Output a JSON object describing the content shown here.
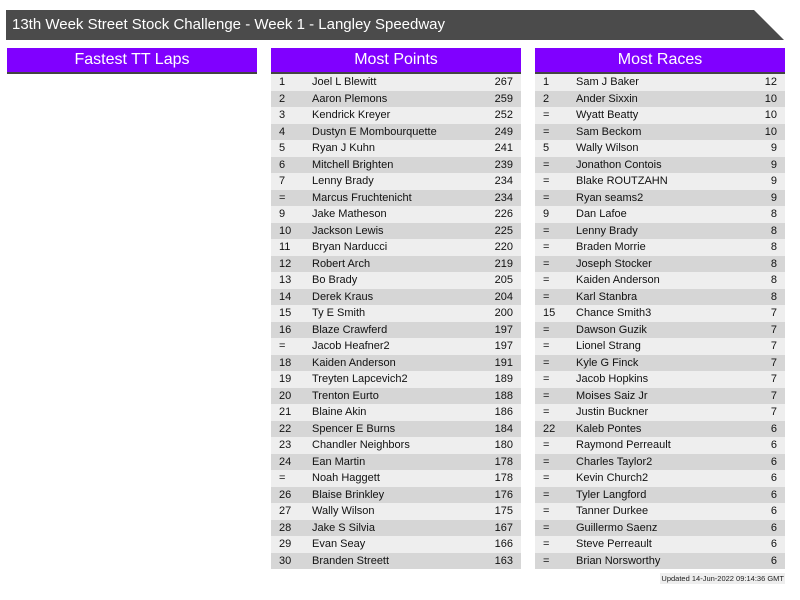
{
  "title": "13th Week Street Stock Challenge - Week 1 - Langley Speedway",
  "colors": {
    "header": "#8000ff",
    "titlebar": "#4b4b4b",
    "row_light": "#eeeeee",
    "row_dark": "#d6d6d6"
  },
  "panels": [
    {
      "title": "Fastest TT Laps",
      "rows": []
    },
    {
      "title": "Most Points",
      "rows": [
        [
          "1",
          "Joel L Blewitt",
          "267"
        ],
        [
          "2",
          "Aaron Plemons",
          "259"
        ],
        [
          "3",
          "Kendrick Kreyer",
          "252"
        ],
        [
          "4",
          "Dustyn E Mombourquette",
          "249"
        ],
        [
          "5",
          "Ryan J Kuhn",
          "241"
        ],
        [
          "6",
          "Mitchell Brighten",
          "239"
        ],
        [
          "7",
          "Lenny Brady",
          "234"
        ],
        [
          "=",
          "Marcus Fruchtenicht",
          "234"
        ],
        [
          "9",
          "Jake Matheson",
          "226"
        ],
        [
          "10",
          "Jackson Lewis",
          "225"
        ],
        [
          "11",
          "Bryan Narducci",
          "220"
        ],
        [
          "12",
          "Robert Arch",
          "219"
        ],
        [
          "13",
          "Bo Brady",
          "205"
        ],
        [
          "14",
          "Derek Kraus",
          "204"
        ],
        [
          "15",
          "Ty E Smith",
          "200"
        ],
        [
          "16",
          "Blaze Crawferd",
          "197"
        ],
        [
          "=",
          "Jacob Heafner2",
          "197"
        ],
        [
          "18",
          "Kaiden Anderson",
          "191"
        ],
        [
          "19",
          "Treyten Lapcevich2",
          "189"
        ],
        [
          "20",
          "Trenton Eurto",
          "188"
        ],
        [
          "21",
          "Blaine Akin",
          "186"
        ],
        [
          "22",
          "Spencer E Burns",
          "184"
        ],
        [
          "23",
          "Chandler Neighbors",
          "180"
        ],
        [
          "24",
          "Ean Martin",
          "178"
        ],
        [
          "=",
          "Noah Haggett",
          "178"
        ],
        [
          "26",
          "Blaise Brinkley",
          "176"
        ],
        [
          "27",
          "Wally Wilson",
          "175"
        ],
        [
          "28",
          "Jake S Silvia",
          "167"
        ],
        [
          "29",
          "Evan Seay",
          "166"
        ],
        [
          "30",
          "Branden Streett",
          "163"
        ]
      ]
    },
    {
      "title": "Most Races",
      "rows": [
        [
          "1",
          "Sam J Baker",
          "12"
        ],
        [
          "2",
          "Ander Sixxin",
          "10"
        ],
        [
          "=",
          "Wyatt Beatty",
          "10"
        ],
        [
          "=",
          "Sam Beckom",
          "10"
        ],
        [
          "5",
          "Wally Wilson",
          "9"
        ],
        [
          "=",
          "Jonathon Contois",
          "9"
        ],
        [
          "=",
          "Blake ROUTZAHN",
          "9"
        ],
        [
          "=",
          "Ryan seams2",
          "9"
        ],
        [
          "9",
          "Dan Lafoe",
          "8"
        ],
        [
          "=",
          "Lenny Brady",
          "8"
        ],
        [
          "=",
          "Braden Morrie",
          "8"
        ],
        [
          "=",
          "Joseph Stocker",
          "8"
        ],
        [
          "=",
          "Kaiden Anderson",
          "8"
        ],
        [
          "=",
          "Karl Stanbra",
          "8"
        ],
        [
          "15",
          "Chance Smith3",
          "7"
        ],
        [
          "=",
          "Dawson Guzik",
          "7"
        ],
        [
          "=",
          "Lionel Strang",
          "7"
        ],
        [
          "=",
          "Kyle G Finck",
          "7"
        ],
        [
          "=",
          "Jacob Hopkins",
          "7"
        ],
        [
          "=",
          "Moises Saiz Jr",
          "7"
        ],
        [
          "=",
          "Justin Buckner",
          "7"
        ],
        [
          "22",
          "Kaleb Pontes",
          "6"
        ],
        [
          "=",
          "Raymond Perreault",
          "6"
        ],
        [
          "=",
          "Charles Taylor2",
          "6"
        ],
        [
          "=",
          "Kevin Church2",
          "6"
        ],
        [
          "=",
          "Tyler Langford",
          "6"
        ],
        [
          "=",
          "Tanner Durkee",
          "6"
        ],
        [
          "=",
          "Guillermo Saenz",
          "6"
        ],
        [
          "=",
          "Steve Perreault",
          "6"
        ],
        [
          "=",
          "Brian Norsworthy",
          "6"
        ]
      ]
    }
  ],
  "updated": "Updated 14-Jun-2022 09:14:36 GMT"
}
